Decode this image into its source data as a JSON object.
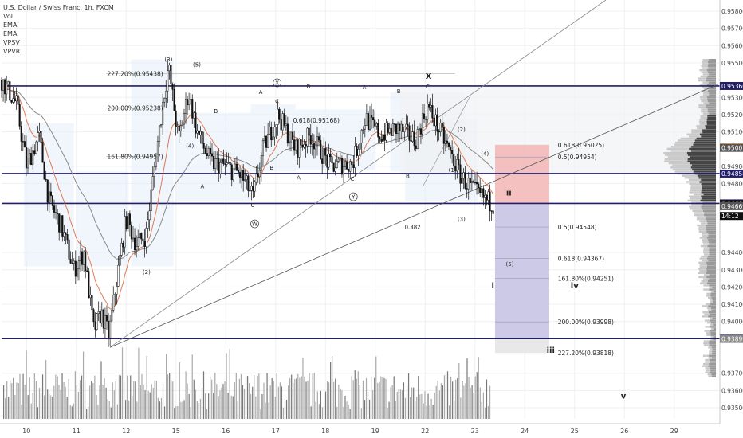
{
  "legend": {
    "title": "U.S. Dollar / Swiss Franc, 1h, FXCM",
    "indicators": [
      "Vol",
      "EMA",
      "EMA",
      "VPSV",
      "VPVR"
    ]
  },
  "chart_data": {
    "type": "candlestick",
    "symbol": "U.S. Dollar / Swiss Franc, 1h, FXCM",
    "ylim": [
      0.9345,
      0.959
    ],
    "y_ticks": [
      0.958,
      0.957,
      0.956,
      0.955,
      0.953,
      0.952,
      0.951,
      0.949,
      0.948,
      0.944,
      0.943,
      0.942,
      0.941,
      0.94,
      0.937,
      0.936,
      0.935
    ],
    "y_tick_labels": [
      "0.95800",
      "0.95700",
      "0.95600",
      "0.95500",
      "0.95300",
      "0.95200",
      "0.95100",
      "0.94900",
      "0.94800",
      "0.94400",
      "0.94300",
      "0.94200",
      "0.94100",
      "0.94000",
      "0.93700",
      "0.93600",
      "0.93500"
    ],
    "x_ticks": [
      {
        "label": "10",
        "pos": 0.5
      },
      {
        "label": "11",
        "pos": 1.5
      },
      {
        "label": "12",
        "pos": 2.5
      },
      {
        "label": "15",
        "pos": 3.5
      },
      {
        "label": "16",
        "pos": 4.5
      },
      {
        "label": "17",
        "pos": 5.5
      },
      {
        "label": "18",
        "pos": 6.5
      },
      {
        "label": "19",
        "pos": 7.5
      },
      {
        "label": "22",
        "pos": 8.5
      },
      {
        "label": "23",
        "pos": 9.5
      },
      {
        "label": "24",
        "pos": 10.5
      },
      {
        "label": "25",
        "pos": 11.5
      },
      {
        "label": "26",
        "pos": 12.5
      },
      {
        "label": "29",
        "pos": 13.5
      }
    ],
    "x_range": [
      0,
      14.8
    ],
    "price_badges": [
      {
        "price": 0.95366,
        "label": "0.95366",
        "style": "dark"
      },
      {
        "price": 0.9501,
        "label": "0.95010",
        "style": "orange"
      },
      {
        "price": 0.95007,
        "label": "0.95007",
        "style": "darkgray"
      },
      {
        "price": 0.94858,
        "label": "0.94858",
        "style": "dark"
      },
      {
        "price": 0.94685,
        "label": "0.94685",
        "style": "dark"
      },
      {
        "price": 0.94681,
        "label": "0.94681",
        "style": "black"
      },
      {
        "price": 0.94669,
        "label": "0.94669",
        "style": "darkgray"
      },
      {
        "price": 0.94612,
        "label": "14:12",
        "style": "black"
      },
      {
        "price": 0.93901,
        "label": "0.93901",
        "style": "dark"
      },
      {
        "price": 0.93899,
        "label": "0.93899",
        "style": "gray"
      }
    ],
    "horizontal_lines": [
      {
        "price": 0.95366,
        "from": 0,
        "to": 14.35
      },
      {
        "price": 0.94858,
        "from": 0,
        "to": 14.35
      },
      {
        "price": 0.94685,
        "from": 0,
        "to": 14.35
      },
      {
        "price": 0.93901,
        "from": 0,
        "to": 14.35
      }
    ],
    "fib_labels": [
      {
        "text": "227.20%(0.95438)",
        "price": 0.95438,
        "x": 2.12
      },
      {
        "text": "200.00%(0.95238)",
        "price": 0.95238,
        "x": 2.12
      },
      {
        "text": "161.80%(0.94957)",
        "price": 0.94957,
        "x": 2.12
      },
      {
        "text": "0.618(0.95168)",
        "price": 0.95168,
        "x": 5.85
      },
      {
        "text": "0.618(0.95025)",
        "price": 0.95025,
        "x": 11.1
      },
      {
        "text": "0.5(0.94954)",
        "price": 0.94954,
        "x": 11.1
      },
      {
        "text": "0.5(0.94548)",
        "price": 0.94548,
        "x": 11.1
      },
      {
        "text": "0.618(0.94367)",
        "price": 0.94367,
        "x": 11.1
      },
      {
        "text": "161.80%(0.94251)",
        "price": 0.94251,
        "x": 11.1
      },
      {
        "text": "200.00%(0.93998)",
        "price": 0.93998,
        "x": 11.1
      },
      {
        "text": "227.20%(0.93818)",
        "price": 0.93818,
        "x": 11.1
      }
    ],
    "wave_labels": [
      {
        "text": "(3)",
        "price": 0.9551,
        "x": 3.35
      },
      {
        "text": "(5)",
        "price": 0.9548,
        "x": 3.92
      },
      {
        "text": "(4)",
        "price": 0.95008,
        "x": 3.78
      },
      {
        "text": "(2)",
        "price": 0.94275,
        "x": 2.91
      },
      {
        "text": "B",
        "price": 0.95208,
        "x": 4.3
      },
      {
        "text": "A",
        "price": 0.94772,
        "x": 4.03
      },
      {
        "text": "A",
        "price": 0.9532,
        "x": 5.2
      },
      {
        "text": "C",
        "price": 0.95267,
        "x": 5.53
      },
      {
        "text": "B",
        "price": 0.95353,
        "x": 6.16
      },
      {
        "text": "A",
        "price": 0.95348,
        "x": 7.28
      },
      {
        "text": "B",
        "price": 0.95325,
        "x": 7.97
      },
      {
        "text": "C",
        "price": 0.95353,
        "x": 8.55
      },
      {
        "text": "B",
        "price": 0.94881,
        "x": 5.42
      },
      {
        "text": "A",
        "price": 0.94824,
        "x": 5.96
      },
      {
        "text": "C",
        "price": 0.94817,
        "x": 7.04
      },
      {
        "text": "B",
        "price": 0.94832,
        "x": 8.15
      },
      {
        "text": "C",
        "price": 0.94665,
        "x": 5.04
      },
      {
        "text": "W",
        "price": 0.94555,
        "x": 5.08,
        "circled": true
      },
      {
        "text": "X",
        "price": 0.95373,
        "x": 5.53,
        "circled": true
      },
      {
        "text": "Y",
        "price": 0.94712,
        "x": 7.06,
        "circled": true
      },
      {
        "text": "X",
        "price": 0.95407,
        "x": 8.57
      },
      {
        "text": "(2)",
        "price": 0.95103,
        "x": 9.23
      },
      {
        "text": "(1)",
        "price": 0.94868,
        "x": 9.05
      },
      {
        "text": "(4)",
        "price": 0.94962,
        "x": 9.7
      },
      {
        "text": "(3)",
        "price": 0.94584,
        "x": 9.23
      },
      {
        "text": "0.382",
        "price": 0.94538,
        "x": 8.25
      },
      {
        "text": "ii",
        "price": 0.9473,
        "x": 10.18
      },
      {
        "text": "(5)",
        "price": 0.94322,
        "x": 10.2
      },
      {
        "text": "i",
        "price": 0.94192,
        "x": 9.86
      },
      {
        "text": "iv",
        "price": 0.94192,
        "x": 11.5
      },
      {
        "text": "iii",
        "price": 0.93818,
        "x": 11.02
      },
      {
        "text": "v",
        "price": 0.93552,
        "x": 12.48
      }
    ]
  }
}
